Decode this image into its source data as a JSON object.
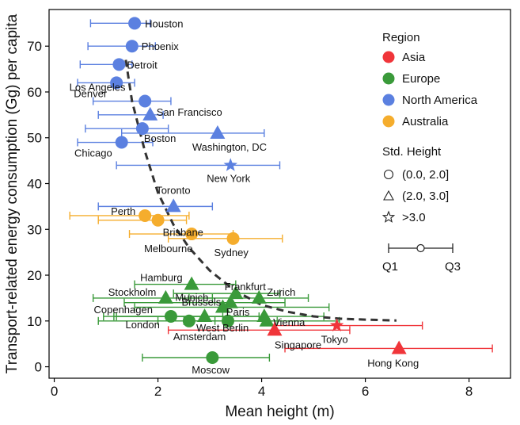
{
  "chart_data": {
    "type": "scatter",
    "xlabel": "Mean height (m)",
    "ylabel": "Transport-related energy consumption (Gg) per capita",
    "xlim": [
      -0.1,
      8.8
    ],
    "ylim": [
      -2.5,
      78
    ],
    "xticks": [
      0,
      2,
      4,
      6,
      8
    ],
    "yticks": [
      0,
      10,
      20,
      30,
      40,
      50,
      60,
      70
    ],
    "grid": false,
    "colors": {
      "Asia": "#f0353a",
      "Europe": "#3a9a3a",
      "North America": "#5b80e0",
      "Australia": "#f5ad2d",
      "trend": "#333333"
    },
    "legend": {
      "placement": "right",
      "region_title": "Region",
      "regions": [
        "Asia",
        "Europe",
        "North America",
        "Australia"
      ],
      "height_title": "Std. Height",
      "heights": [
        {
          "marker": "circle",
          "label": "(0.0, 2.0]"
        },
        {
          "marker": "triangle",
          "label": "(2.0, 3.0]"
        },
        {
          "marker": "star",
          "label": ">3.0"
        }
      ],
      "range_labels": [
        "Q1",
        "Q3"
      ]
    },
    "trend_line": {
      "style": "dashed",
      "x": [
        1.38,
        1.5,
        1.75,
        2.0,
        2.3,
        2.6,
        3.0,
        3.5,
        4.0,
        4.5,
        5.0,
        5.5,
        6.0,
        6.6
      ],
      "y": [
        67,
        58,
        47,
        38,
        31,
        26,
        21,
        16.5,
        13.5,
        12,
        11,
        10.5,
        10.3,
        10.1
      ]
    },
    "points": [
      {
        "city": "Houston",
        "region": "North America",
        "marker": "circle",
        "x": 1.55,
        "y": 75,
        "q1": 0.7,
        "q3": 1.85
      },
      {
        "city": "Phoenix",
        "region": "North America",
        "marker": "circle",
        "x": 1.5,
        "y": 70,
        "q1": 0.65,
        "q3": 1.95
      },
      {
        "city": "Detroit",
        "region": "North America",
        "marker": "circle",
        "x": 1.25,
        "y": 66,
        "q1": 0.5,
        "q3": 1.5
      },
      {
        "city": "Denver",
        "region": "North America",
        "marker": "circle",
        "x": 1.2,
        "y": 62,
        "q1": 0.45,
        "q3": 1.55
      },
      {
        "city": "Los Angeles",
        "region": "North America",
        "marker": "circle",
        "x": 1.75,
        "y": 58,
        "q1": 0.75,
        "q3": 2.25
      },
      {
        "city": "San Francisco",
        "region": "North America",
        "marker": "triangle",
        "x": 1.85,
        "y": 55,
        "q1": 0.85,
        "q3": 2.1
      },
      {
        "city": "Boston",
        "region": "North America",
        "marker": "circle",
        "x": 1.7,
        "y": 52,
        "q1": 0.6,
        "q3": 2.2
      },
      {
        "city": "Chicago",
        "region": "North America",
        "marker": "circle",
        "x": 1.3,
        "y": 49,
        "q1": 0.45,
        "q3": 1.9
      },
      {
        "city": "Washington, DC",
        "region": "North America",
        "marker": "triangle",
        "x": 3.15,
        "y": 51,
        "q1": 1.3,
        "q3": 4.05
      },
      {
        "city": "New York",
        "region": "North America",
        "marker": "star",
        "x": 3.4,
        "y": 44,
        "q1": 1.2,
        "q3": 4.35
      },
      {
        "city": "Toronto",
        "region": "North America",
        "marker": "triangle",
        "x": 2.3,
        "y": 35,
        "q1": 0.85,
        "q3": 3.05
      },
      {
        "city": "Perth",
        "region": "Australia",
        "marker": "circle",
        "x": 1.75,
        "y": 33,
        "q1": 0.3,
        "q3": 2.6
      },
      {
        "city": "Brisbane",
        "region": "Australia",
        "marker": "circle",
        "x": 2.0,
        "y": 32,
        "q1": 0.85,
        "q3": 2.55
      },
      {
        "city": "Melbourne",
        "region": "Australia",
        "marker": "circle",
        "x": 2.65,
        "y": 29,
        "q1": 1.45,
        "q3": 3.45
      },
      {
        "city": "Sydney",
        "region": "Australia",
        "marker": "circle",
        "x": 3.45,
        "y": 28,
        "q1": 2.2,
        "q3": 4.4
      },
      {
        "city": "Hamburg",
        "region": "Europe",
        "marker": "triangle",
        "x": 2.65,
        "y": 18,
        "q1": 1.55,
        "q3": 3.5
      },
      {
        "city": "Frankfurt",
        "region": "Europe",
        "marker": "triangle",
        "x": 3.5,
        "y": 16,
        "q1": 2.3,
        "q3": 4.35
      },
      {
        "city": "Stockholm",
        "region": "Europe",
        "marker": "triangle",
        "x": 2.15,
        "y": 15,
        "q1": 0.75,
        "q3": 3.05
      },
      {
        "city": "Brussels",
        "region": "Europe",
        "marker": "triangle",
        "x": 3.4,
        "y": 14,
        "q1": 1.35,
        "q3": 4.45
      },
      {
        "city": "Zurich",
        "region": "Europe",
        "marker": "triangle",
        "x": 3.95,
        "y": 15,
        "q1": 2.6,
        "q3": 4.9
      },
      {
        "city": "Munich",
        "region": "Europe",
        "marker": "triangle",
        "x": 3.25,
        "y": 13,
        "q1": 1.55,
        "q3": 5.3
      },
      {
        "city": "Copenhagen",
        "region": "Europe",
        "marker": "triangle",
        "x": 2.9,
        "y": 11,
        "q1": 0.95,
        "q3": 3.95
      },
      {
        "city": "Paris",
        "region": "Europe",
        "marker": "triangle",
        "x": 4.05,
        "y": 11,
        "q1": 1.2,
        "q3": 5.2
      },
      {
        "city": "Vienna",
        "region": "Europe",
        "marker": "triangle",
        "x": 4.1,
        "y": 10,
        "q1": 2.5,
        "q3": 5.5
      },
      {
        "city": "London",
        "region": "Europe",
        "marker": "circle",
        "x": 2.25,
        "y": 11,
        "q1": 1.15,
        "q3": 3.25
      },
      {
        "city": "Amsterdam",
        "region": "Europe",
        "marker": "circle",
        "x": 2.6,
        "y": 10,
        "q1": 0.85,
        "q3": 3.1
      },
      {
        "city": "West Berlin",
        "region": "Europe",
        "marker": "circle",
        "x": 3.35,
        "y": 10,
        "q1": 2.0,
        "q3": 4.3
      },
      {
        "city": "Moscow",
        "region": "Europe",
        "marker": "circle",
        "x": 3.05,
        "y": 2,
        "q1": 1.7,
        "q3": 4.15
      },
      {
        "city": "Singapore",
        "region": "Asia",
        "marker": "triangle",
        "x": 4.25,
        "y": 8,
        "q1": 2.2,
        "q3": 5.7
      },
      {
        "city": "Tokyo",
        "region": "Asia",
        "marker": "star",
        "x": 5.45,
        "y": 9,
        "q1": 4.25,
        "q3": 7.1
      },
      {
        "city": "Hong Kong",
        "region": "Asia",
        "marker": "triangle",
        "x": 6.65,
        "y": 4,
        "q1": 4.45,
        "q3": 8.45
      }
    ]
  }
}
